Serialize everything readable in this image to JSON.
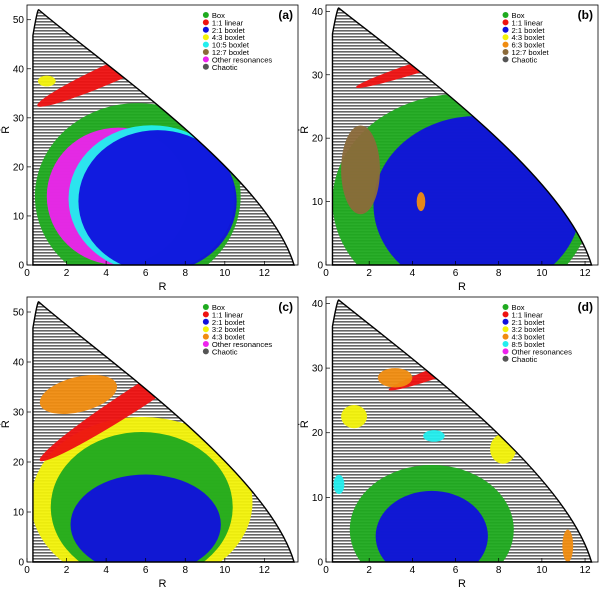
{
  "figure": {
    "layout": "2x2 grid of orbit-classification maps"
  },
  "chart_data": [
    {
      "panel_label": "(a)",
      "type": "scatter",
      "xlabel": "R",
      "ylabel": "Ṙ",
      "x_ticks": [
        0,
        2,
        4,
        6,
        8,
        10,
        12
      ],
      "y_ticks": [
        0,
        10,
        20,
        30,
        40,
        50
      ],
      "xlim": [
        0,
        13.7
      ],
      "ylim": [
        0,
        53
      ],
      "boundary": {
        "Rmin": 0.3,
        "Rmax": 13.5,
        "peak": [
          0.6,
          52
        ]
      },
      "legend": {
        "placement": "top-right",
        "entries": [
          {
            "name": "Box",
            "color": "#1faa1f"
          },
          {
            "name": "1:1 linear",
            "color": "#ee1111"
          },
          {
            "name": "2:1 boxlet",
            "color": "#1010dd"
          },
          {
            "name": "4:3 boxlet",
            "color": "#f2f20a"
          },
          {
            "name": "10:5 boxlet",
            "color": "#22eeee"
          },
          {
            "name": "12:7 boxlet",
            "color": "#8b6a3a"
          },
          {
            "name": "Other resonances",
            "color": "#ee22ee"
          },
          {
            "name": "Chaotic",
            "color": "#555555"
          }
        ]
      },
      "regions": [
        {
          "class": "Box",
          "color": "#1faa1f",
          "cx": 5.6,
          "cy": 14,
          "rx": 5.2,
          "ry": 19
        },
        {
          "class": "Other resonances",
          "color": "#ee22ee",
          "cx": 4.6,
          "cy": 14,
          "rx": 3.6,
          "ry": 14
        },
        {
          "class": "10:5 boxlet",
          "color": "#22eeee",
          "cx": 6.3,
          "cy": 13.5,
          "rx": 4.2,
          "ry": 15
        },
        {
          "class": "2:1 boxlet",
          "color": "#1010dd",
          "cx": 6.6,
          "cy": 13,
          "rx": 4.0,
          "ry": 14.5
        },
        {
          "class": "1:1 linear",
          "color": "#ee1111",
          "cx": 5.0,
          "cy": 40.5,
          "rx": 4.9,
          "ry": 2.0,
          "rot": -24
        },
        {
          "class": "4:3 boxlet",
          "color": "#f2f20a",
          "cx": 1.0,
          "cy": 37.5,
          "rx": 0.45,
          "ry": 1.1
        }
      ]
    },
    {
      "panel_label": "(b)",
      "type": "scatter",
      "xlabel": "R",
      "ylabel": "Ṙ",
      "x_ticks": [
        0,
        2,
        4,
        6,
        8,
        10,
        12
      ],
      "y_ticks": [
        0,
        10,
        20,
        30,
        40
      ],
      "xlim": [
        0,
        12.6
      ],
      "ylim": [
        0,
        41
      ],
      "boundary": {
        "Rmin": 0.3,
        "Rmax": 12.3,
        "peak": [
          0.6,
          40.5
        ]
      },
      "legend": {
        "placement": "top-right",
        "entries": [
          {
            "name": "Box",
            "color": "#1faa1f"
          },
          {
            "name": "1:1 linear",
            "color": "#ee1111"
          },
          {
            "name": "2:1 boxlet",
            "color": "#1010dd"
          },
          {
            "name": "4:3 boxlet",
            "color": "#f2f20a"
          },
          {
            "name": "6:3 boxlet",
            "color": "#f08c10"
          },
          {
            "name": "12:7 boxlet",
            "color": "#8b6a3a"
          },
          {
            "name": "Chaotic",
            "color": "#555555"
          }
        ]
      },
      "regions": [
        {
          "class": "Box",
          "color": "#1faa1f",
          "cx": 6.3,
          "cy": 10,
          "rx": 6.0,
          "ry": 17
        },
        {
          "class": "2:1 boxlet",
          "color": "#1010dd",
          "cx": 7.0,
          "cy": 9.5,
          "rx": 4.8,
          "ry": 14
        },
        {
          "class": "1:1 linear",
          "color": "#ee1111",
          "cx": 5.0,
          "cy": 32.0,
          "rx": 3.8,
          "ry": 0.9,
          "rot": -18
        },
        {
          "class": "12:7 boxlet",
          "color": "#8b6a3a",
          "cx": 1.6,
          "cy": 15,
          "rx": 0.9,
          "ry": 7
        },
        {
          "class": "6:3 boxlet",
          "color": "#f08c10",
          "cx": 4.4,
          "cy": 10,
          "rx": 0.2,
          "ry": 1.5
        }
      ]
    },
    {
      "panel_label": "(c)",
      "type": "scatter",
      "xlabel": "R",
      "ylabel": "Ṙ",
      "x_ticks": [
        0,
        2,
        4,
        6,
        8,
        10,
        12
      ],
      "y_ticks": [
        0,
        10,
        20,
        30,
        40,
        50
      ],
      "xlim": [
        0,
        13.7
      ],
      "ylim": [
        0,
        53
      ],
      "boundary": {
        "Rmin": 0.3,
        "Rmax": 13.5,
        "peak": [
          0.6,
          52
        ]
      },
      "legend": {
        "placement": "top-right",
        "entries": [
          {
            "name": "Box",
            "color": "#1faa1f"
          },
          {
            "name": "1:1 linear",
            "color": "#ee1111"
          },
          {
            "name": "2:1 boxlet",
            "color": "#1010dd"
          },
          {
            "name": "3:2 boxlet",
            "color": "#f2f20a"
          },
          {
            "name": "4:3 boxlet",
            "color": "#f08c10"
          },
          {
            "name": "Other resonances",
            "color": "#ee22ee"
          },
          {
            "name": "Chaotic",
            "color": "#555555"
          }
        ]
      },
      "regions": [
        {
          "class": "3:2 boxlet",
          "color": "#f2f20a",
          "cx": 5.8,
          "cy": 12,
          "rx": 5.6,
          "ry": 17
        },
        {
          "class": "Box",
          "color": "#1faa1f",
          "cx": 5.8,
          "cy": 11,
          "rx": 4.6,
          "ry": 15
        },
        {
          "class": "2:1 boxlet",
          "color": "#1010dd",
          "cx": 6.0,
          "cy": 7.5,
          "rx": 3.8,
          "ry": 10
        },
        {
          "class": "1:1 linear",
          "color": "#ee1111",
          "cx": 5.6,
          "cy": 33.0,
          "rx": 5.9,
          "ry": 2.2,
          "rot": -33
        },
        {
          "class": "4:3 boxlet",
          "color": "#f08c10",
          "cx": 2.6,
          "cy": 33.5,
          "rx": 2.0,
          "ry": 3.5,
          "rot": -14
        }
      ]
    },
    {
      "panel_label": "(d)",
      "type": "scatter",
      "xlabel": "R",
      "ylabel": "Ṙ",
      "x_ticks": [
        0,
        2,
        4,
        6,
        8,
        10,
        12
      ],
      "y_ticks": [
        0,
        10,
        20,
        30,
        40
      ],
      "xlim": [
        0,
        12.6
      ],
      "ylim": [
        0,
        41
      ],
      "boundary": {
        "Rmin": 0.3,
        "Rmax": 12.3,
        "peak": [
          0.6,
          40.5
        ]
      },
      "legend": {
        "placement": "top-right",
        "entries": [
          {
            "name": "Box",
            "color": "#1faa1f"
          },
          {
            "name": "1:1 linear",
            "color": "#ee1111"
          },
          {
            "name": "2:1 boxlet",
            "color": "#1010dd"
          },
          {
            "name": "3:2 boxlet",
            "color": "#f2f20a"
          },
          {
            "name": "4:3 boxlet",
            "color": "#f08c10"
          },
          {
            "name": "8:5 boxlet",
            "color": "#22eeee"
          },
          {
            "name": "Other resonances",
            "color": "#ee22ee"
          },
          {
            "name": "Chaotic",
            "color": "#555555"
          }
        ]
      },
      "regions": [
        {
          "class": "Box",
          "color": "#1faa1f",
          "cx": 4.9,
          "cy": 5,
          "rx": 3.8,
          "ry": 10
        },
        {
          "class": "2:1 boxlet",
          "color": "#1010dd",
          "cx": 4.9,
          "cy": 4,
          "rx": 2.6,
          "ry": 7
        },
        {
          "class": "1:1 linear",
          "color": "#ee1111",
          "cx": 6.1,
          "cy": 30.5,
          "rx": 3.4,
          "ry": 0.9,
          "rot": -20
        },
        {
          "class": "4:3 boxlet",
          "color": "#f08c10",
          "cx": 3.2,
          "cy": 28.5,
          "rx": 0.8,
          "ry": 1.5
        },
        {
          "class": "3:2 boxlet",
          "color": "#f2f20a",
          "cx": 1.3,
          "cy": 22.5,
          "rx": 0.6,
          "ry": 1.8
        },
        {
          "class": "3:2 boxlet",
          "color": "#f2f20a",
          "cx": 8.2,
          "cy": 17.5,
          "rx": 0.6,
          "ry": 2.3
        },
        {
          "class": "8:5 boxlet",
          "color": "#22eeee",
          "cx": 5.0,
          "cy": 19.5,
          "rx": 0.5,
          "ry": 0.9
        },
        {
          "class": "8:5 boxlet",
          "color": "#22eeee",
          "cx": 0.6,
          "cy": 12,
          "rx": 0.25,
          "ry": 1.5
        },
        {
          "class": "4:3 boxlet",
          "color": "#f08c10",
          "cx": 11.2,
          "cy": 2.5,
          "rx": 0.25,
          "ry": 2.5
        }
      ]
    }
  ]
}
